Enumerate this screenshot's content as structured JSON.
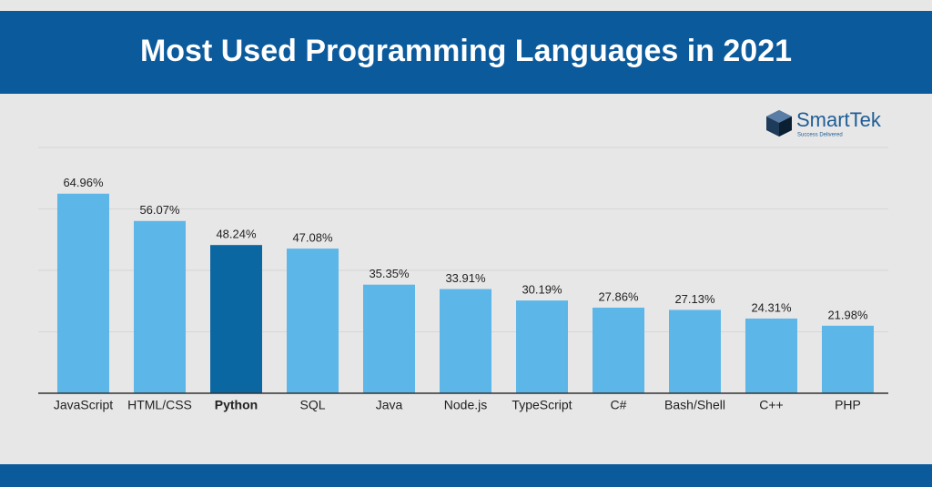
{
  "chart_data": {
    "type": "bar",
    "title": "Most Used Programming Languages in 2021",
    "brand": {
      "name": "SmartTek",
      "tagline": "Success Delivered"
    },
    "categories": [
      "JavaScript",
      "HTML/CSS",
      "Python",
      "SQL",
      "Java",
      "Node.js",
      "TypeScript",
      "C#",
      "Bash/Shell",
      "C++",
      "PHP"
    ],
    "values": [
      64.96,
      56.07,
      48.24,
      47.08,
      35.35,
      33.91,
      30.19,
      27.86,
      27.13,
      24.31,
      21.98
    ],
    "value_labels": [
      "64.96%",
      "56.07%",
      "48.24%",
      "47.08%",
      "35.35%",
      "33.91%",
      "30.19%",
      "27.86%",
      "27.13%",
      "24.31%",
      "21.98%"
    ],
    "color": "#5db6e8",
    "highlight": {
      "index": 2,
      "color": "#0b67a1"
    },
    "ylim": [
      0,
      80
    ],
    "yticks": [
      0,
      20,
      40,
      60,
      80
    ],
    "grid": true
  }
}
